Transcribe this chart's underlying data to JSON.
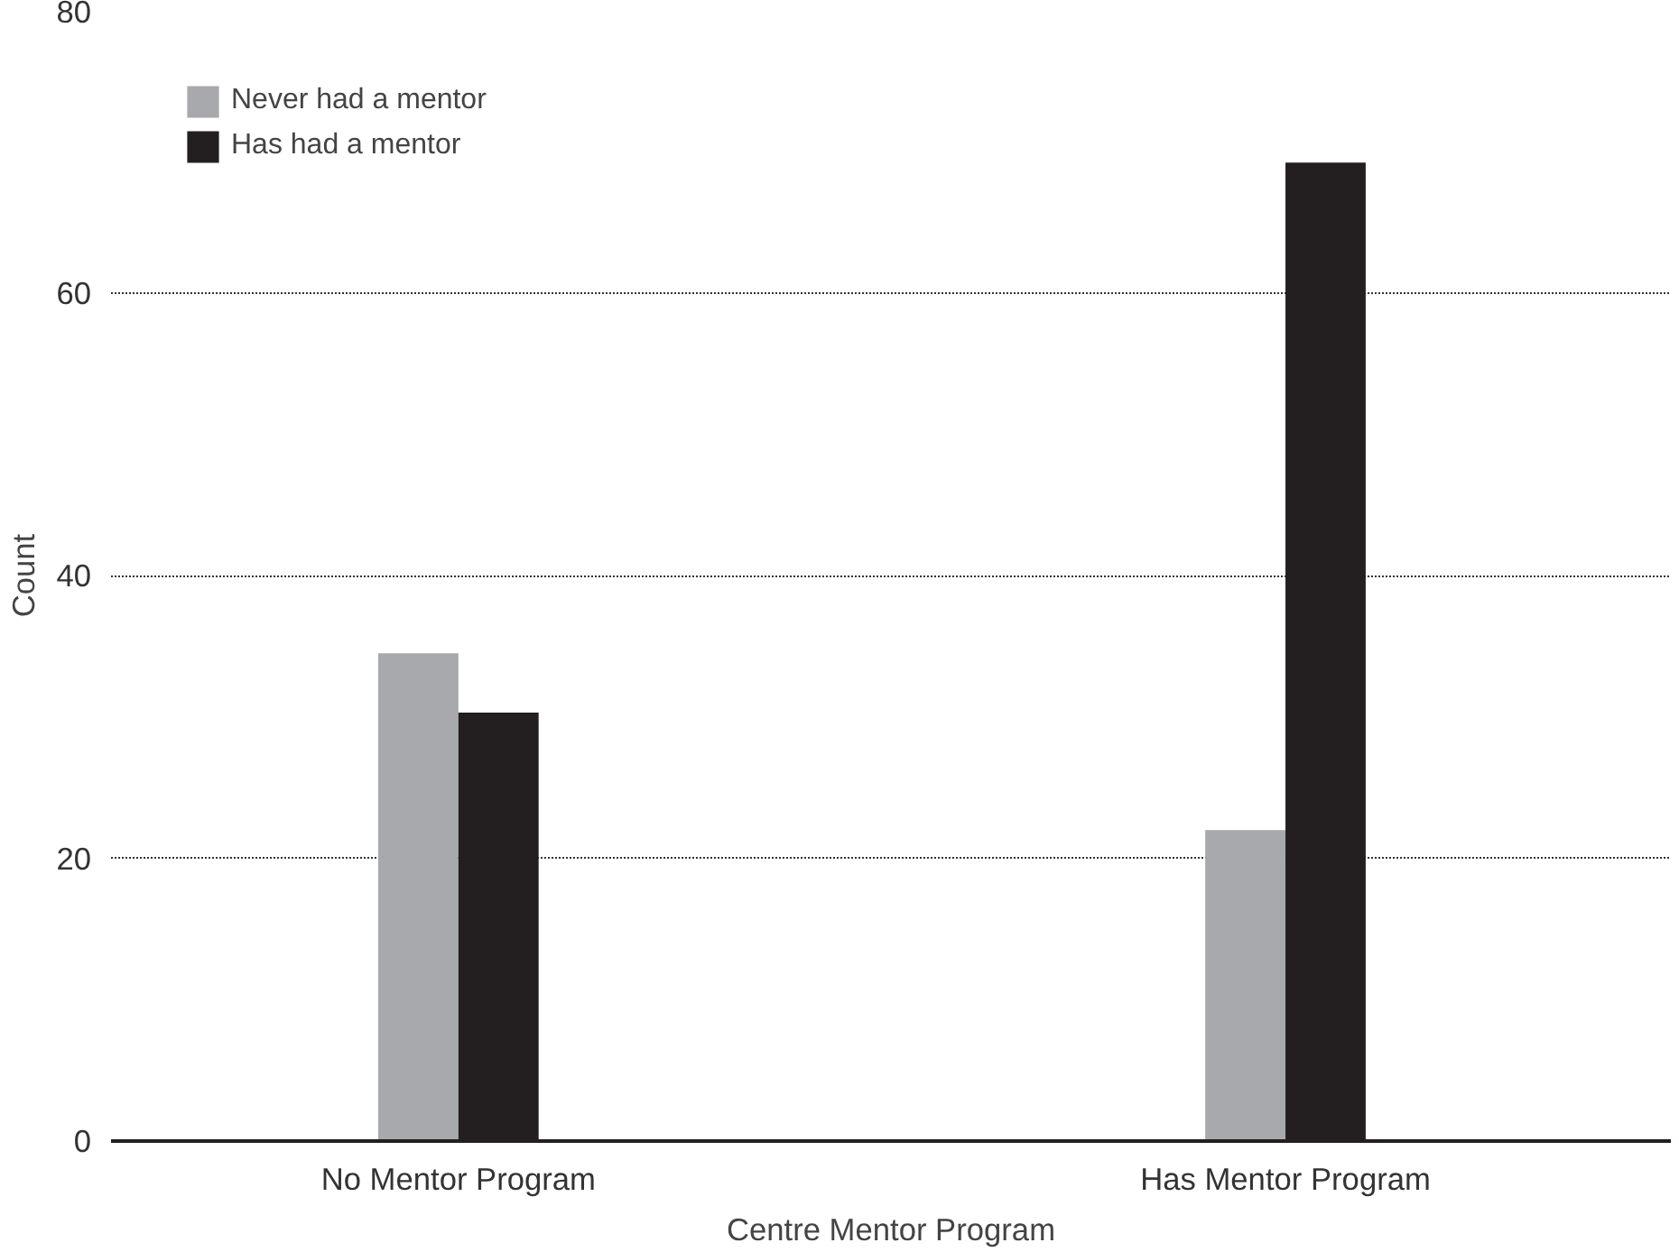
{
  "chart_data": {
    "type": "bar",
    "xlabel": "Centre Mentor Program",
    "ylabel": "Count",
    "categories": [
      "No Mentor Program",
      "Has Mentor Program"
    ],
    "series": [
      {
        "name": "Never had a mentor",
        "color": "#a7a9ac",
        "values": [
          34.5,
          22
        ]
      },
      {
        "name": "Has had a mentor",
        "color": "#231f20",
        "values": [
          30.3,
          69.2
        ]
      }
    ],
    "ylim": [
      0,
      80
    ],
    "yticks": [
      0,
      20,
      40,
      60,
      80
    ],
    "grid": "y",
    "legend": "top left"
  }
}
